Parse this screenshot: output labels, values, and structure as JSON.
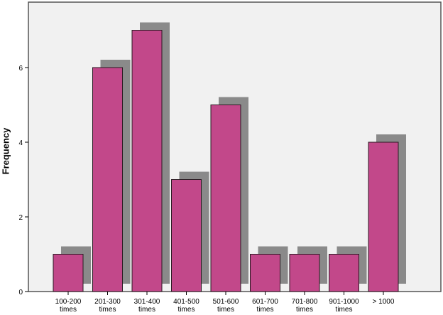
{
  "chart_data": {
    "type": "bar",
    "title": "",
    "xlabel": "",
    "ylabel": "Frequency",
    "categories": [
      "100-200 times",
      "201-300 times",
      "301-400 times",
      "401-500 times",
      "501-600 times",
      "601-700 times",
      "701-800 times",
      "901-1000 times",
      "> 1000"
    ],
    "category_lines": [
      [
        "100-200",
        "times"
      ],
      [
        "201-300",
        "times"
      ],
      [
        "301-400",
        "times"
      ],
      [
        "401-500",
        "times"
      ],
      [
        "501-600",
        "times"
      ],
      [
        "601-700",
        "times"
      ],
      [
        "701-800",
        "times"
      ],
      [
        "901-1000",
        "times"
      ],
      [
        "> 1000",
        ""
      ]
    ],
    "values": [
      1,
      6,
      7,
      3,
      5,
      1,
      1,
      1,
      4
    ],
    "ylim": [
      0,
      7.7
    ],
    "yticks": [
      0,
      2,
      4,
      6
    ],
    "grid": false,
    "legend": null,
    "style": {
      "bar_color": "#c2488a",
      "shadow_color": "#8a8a8a",
      "plot_bg": "#f1f1f1",
      "axis_color": "#555555"
    }
  }
}
